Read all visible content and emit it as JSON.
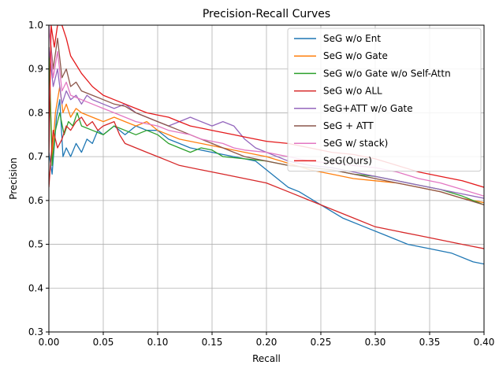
{
  "chart_data": {
    "type": "line",
    "title": "Precision-Recall Curves",
    "xlabel": "Recall",
    "ylabel": "Precision",
    "xlim": [
      0.0,
      0.4
    ],
    "ylim": [
      0.3,
      1.0
    ],
    "xticks": [
      0.0,
      0.05,
      0.1,
      0.15,
      0.2,
      0.25,
      0.3,
      0.35,
      0.4
    ],
    "xtick_labels": [
      "0.00",
      "0.05",
      "0.10",
      "0.15",
      "0.20",
      "0.25",
      "0.30",
      "0.35",
      "0.40"
    ],
    "yticks": [
      0.3,
      0.4,
      0.5,
      0.6,
      0.7,
      0.8,
      0.9,
      1.0
    ],
    "ytick_labels": [
      "0.3",
      "0.4",
      "0.5",
      "0.6",
      "0.7",
      "0.8",
      "0.9",
      "1.0"
    ],
    "grid": true,
    "legend_position": "top-right",
    "series": [
      {
        "name": "SeG w/o Ent",
        "color": "#1f77b4",
        "points": [
          [
            0.0,
            0.71
          ],
          [
            0.003,
            0.66
          ],
          [
            0.007,
            0.79
          ],
          [
            0.01,
            0.83
          ],
          [
            0.013,
            0.7
          ],
          [
            0.016,
            0.72
          ],
          [
            0.02,
            0.7
          ],
          [
            0.025,
            0.73
          ],
          [
            0.03,
            0.71
          ],
          [
            0.035,
            0.74
          ],
          [
            0.04,
            0.73
          ],
          [
            0.045,
            0.76
          ],
          [
            0.05,
            0.75
          ],
          [
            0.06,
            0.77
          ],
          [
            0.07,
            0.75
          ],
          [
            0.08,
            0.77
          ],
          [
            0.09,
            0.76
          ],
          [
            0.1,
            0.76
          ],
          [
            0.11,
            0.74
          ],
          [
            0.12,
            0.73
          ],
          [
            0.13,
            0.72
          ],
          [
            0.15,
            0.71
          ],
          [
            0.17,
            0.7
          ],
          [
            0.19,
            0.69
          ],
          [
            0.2,
            0.67
          ],
          [
            0.21,
            0.65
          ],
          [
            0.22,
            0.63
          ],
          [
            0.23,
            0.62
          ],
          [
            0.25,
            0.59
          ],
          [
            0.27,
            0.56
          ],
          [
            0.29,
            0.54
          ],
          [
            0.31,
            0.52
          ],
          [
            0.33,
            0.5
          ],
          [
            0.35,
            0.49
          ],
          [
            0.37,
            0.48
          ],
          [
            0.39,
            0.46
          ],
          [
            0.4,
            0.455
          ]
        ]
      },
      {
        "name": "SeG w/o Gate",
        "color": "#ff7f0e",
        "points": [
          [
            0.0,
            0.95
          ],
          [
            0.003,
            0.7
          ],
          [
            0.006,
            0.8
          ],
          [
            0.01,
            0.86
          ],
          [
            0.013,
            0.8
          ],
          [
            0.016,
            0.82
          ],
          [
            0.02,
            0.79
          ],
          [
            0.025,
            0.81
          ],
          [
            0.03,
            0.8
          ],
          [
            0.04,
            0.79
          ],
          [
            0.05,
            0.78
          ],
          [
            0.06,
            0.79
          ],
          [
            0.07,
            0.78
          ],
          [
            0.08,
            0.77
          ],
          [
            0.09,
            0.78
          ],
          [
            0.1,
            0.76
          ],
          [
            0.12,
            0.74
          ],
          [
            0.14,
            0.73
          ],
          [
            0.16,
            0.72
          ],
          [
            0.18,
            0.71
          ],
          [
            0.2,
            0.7
          ],
          [
            0.22,
            0.685
          ],
          [
            0.24,
            0.67
          ],
          [
            0.26,
            0.66
          ],
          [
            0.28,
            0.65
          ],
          [
            0.3,
            0.645
          ],
          [
            0.32,
            0.64
          ],
          [
            0.34,
            0.63
          ],
          [
            0.36,
            0.62
          ],
          [
            0.38,
            0.605
          ],
          [
            0.4,
            0.595
          ]
        ]
      },
      {
        "name": "SeG w/o Gate w/o Self-Attn",
        "color": "#2ca02c",
        "points": [
          [
            0.0,
            0.95
          ],
          [
            0.003,
            0.68
          ],
          [
            0.006,
            0.76
          ],
          [
            0.01,
            0.8
          ],
          [
            0.014,
            0.75
          ],
          [
            0.018,
            0.78
          ],
          [
            0.022,
            0.77
          ],
          [
            0.026,
            0.8
          ],
          [
            0.03,
            0.77
          ],
          [
            0.04,
            0.76
          ],
          [
            0.05,
            0.75
          ],
          [
            0.06,
            0.77
          ],
          [
            0.07,
            0.76
          ],
          [
            0.08,
            0.75
          ],
          [
            0.09,
            0.76
          ],
          [
            0.1,
            0.75
          ],
          [
            0.11,
            0.73
          ],
          [
            0.12,
            0.72
          ],
          [
            0.13,
            0.71
          ],
          [
            0.14,
            0.72
          ],
          [
            0.15,
            0.715
          ],
          [
            0.16,
            0.7
          ],
          [
            0.18,
            0.695
          ],
          [
            0.2,
            0.69
          ],
          [
            0.22,
            0.68
          ],
          [
            0.24,
            0.675
          ],
          [
            0.26,
            0.67
          ],
          [
            0.28,
            0.66
          ],
          [
            0.3,
            0.655
          ],
          [
            0.32,
            0.645
          ],
          [
            0.34,
            0.635
          ],
          [
            0.36,
            0.625
          ],
          [
            0.38,
            0.61
          ],
          [
            0.4,
            0.59
          ]
        ]
      },
      {
        "name": "SeG w/o ALL",
        "color": "#d62728",
        "points": [
          [
            0.0,
            0.63
          ],
          [
            0.002,
            0.7
          ],
          [
            0.004,
            0.76
          ],
          [
            0.008,
            0.72
          ],
          [
            0.012,
            0.74
          ],
          [
            0.016,
            0.77
          ],
          [
            0.02,
            0.76
          ],
          [
            0.025,
            0.78
          ],
          [
            0.03,
            0.79
          ],
          [
            0.035,
            0.77
          ],
          [
            0.04,
            0.78
          ],
          [
            0.045,
            0.76
          ],
          [
            0.05,
            0.77
          ],
          [
            0.06,
            0.78
          ],
          [
            0.065,
            0.75
          ],
          [
            0.07,
            0.73
          ],
          [
            0.08,
            0.72
          ],
          [
            0.09,
            0.71
          ],
          [
            0.1,
            0.7
          ],
          [
            0.11,
            0.69
          ],
          [
            0.12,
            0.68
          ],
          [
            0.14,
            0.67
          ],
          [
            0.16,
            0.66
          ],
          [
            0.18,
            0.65
          ],
          [
            0.2,
            0.64
          ],
          [
            0.22,
            0.62
          ],
          [
            0.24,
            0.6
          ],
          [
            0.26,
            0.58
          ],
          [
            0.28,
            0.56
          ],
          [
            0.3,
            0.54
          ],
          [
            0.32,
            0.53
          ],
          [
            0.34,
            0.52
          ],
          [
            0.36,
            0.51
          ],
          [
            0.38,
            0.5
          ],
          [
            0.4,
            0.49
          ]
        ]
      },
      {
        "name": "SeG+ATT w/o Gate",
        "color": "#9467bd",
        "points": [
          [
            0.0,
            0.95
          ],
          [
            0.004,
            0.86
          ],
          [
            0.008,
            0.9
          ],
          [
            0.012,
            0.82
          ],
          [
            0.016,
            0.85
          ],
          [
            0.02,
            0.83
          ],
          [
            0.025,
            0.84
          ],
          [
            0.03,
            0.82
          ],
          [
            0.035,
            0.84
          ],
          [
            0.04,
            0.83
          ],
          [
            0.05,
            0.82
          ],
          [
            0.06,
            0.81
          ],
          [
            0.07,
            0.82
          ],
          [
            0.08,
            0.8
          ],
          [
            0.09,
            0.79
          ],
          [
            0.1,
            0.78
          ],
          [
            0.11,
            0.77
          ],
          [
            0.12,
            0.78
          ],
          [
            0.13,
            0.79
          ],
          [
            0.14,
            0.78
          ],
          [
            0.15,
            0.77
          ],
          [
            0.16,
            0.78
          ],
          [
            0.17,
            0.77
          ],
          [
            0.18,
            0.74
          ],
          [
            0.19,
            0.72
          ],
          [
            0.2,
            0.71
          ],
          [
            0.22,
            0.69
          ],
          [
            0.24,
            0.68
          ],
          [
            0.26,
            0.675
          ],
          [
            0.28,
            0.665
          ],
          [
            0.3,
            0.655
          ],
          [
            0.32,
            0.645
          ],
          [
            0.34,
            0.635
          ],
          [
            0.36,
            0.625
          ],
          [
            0.38,
            0.615
          ],
          [
            0.4,
            0.605
          ]
        ]
      },
      {
        "name": "SeG + ATT",
        "color": "#8c564b",
        "points": [
          [
            0.0,
            1.0
          ],
          [
            0.004,
            0.9
          ],
          [
            0.008,
            0.97
          ],
          [
            0.012,
            0.88
          ],
          [
            0.016,
            0.9
          ],
          [
            0.02,
            0.86
          ],
          [
            0.025,
            0.87
          ],
          [
            0.03,
            0.85
          ],
          [
            0.04,
            0.84
          ],
          [
            0.05,
            0.83
          ],
          [
            0.06,
            0.82
          ],
          [
            0.07,
            0.815
          ],
          [
            0.08,
            0.8
          ],
          [
            0.09,
            0.79
          ],
          [
            0.1,
            0.78
          ],
          [
            0.11,
            0.77
          ],
          [
            0.12,
            0.76
          ],
          [
            0.13,
            0.75
          ],
          [
            0.14,
            0.74
          ],
          [
            0.15,
            0.73
          ],
          [
            0.16,
            0.72
          ],
          [
            0.17,
            0.71
          ],
          [
            0.18,
            0.7
          ],
          [
            0.2,
            0.69
          ],
          [
            0.22,
            0.68
          ],
          [
            0.24,
            0.675
          ],
          [
            0.26,
            0.67
          ],
          [
            0.28,
            0.66
          ],
          [
            0.3,
            0.65
          ],
          [
            0.32,
            0.64
          ],
          [
            0.34,
            0.63
          ],
          [
            0.36,
            0.62
          ],
          [
            0.38,
            0.605
          ],
          [
            0.4,
            0.59
          ]
        ]
      },
      {
        "name": "SeG w/ stack)",
        "color": "#e377c2",
        "points": [
          [
            0.0,
            1.0
          ],
          [
            0.004,
            0.88
          ],
          [
            0.008,
            0.94
          ],
          [
            0.012,
            0.85
          ],
          [
            0.016,
            0.87
          ],
          [
            0.02,
            0.84
          ],
          [
            0.03,
            0.83
          ],
          [
            0.04,
            0.82
          ],
          [
            0.05,
            0.81
          ],
          [
            0.06,
            0.8
          ],
          [
            0.07,
            0.79
          ],
          [
            0.08,
            0.78
          ],
          [
            0.09,
            0.775
          ],
          [
            0.1,
            0.77
          ],
          [
            0.11,
            0.76
          ],
          [
            0.12,
            0.755
          ],
          [
            0.13,
            0.75
          ],
          [
            0.14,
            0.74
          ],
          [
            0.15,
            0.735
          ],
          [
            0.16,
            0.73
          ],
          [
            0.17,
            0.72
          ],
          [
            0.18,
            0.715
          ],
          [
            0.2,
            0.71
          ],
          [
            0.22,
            0.7
          ],
          [
            0.24,
            0.69
          ],
          [
            0.26,
            0.685
          ],
          [
            0.28,
            0.68
          ],
          [
            0.3,
            0.675
          ],
          [
            0.32,
            0.665
          ],
          [
            0.34,
            0.65
          ],
          [
            0.36,
            0.64
          ],
          [
            0.38,
            0.625
          ],
          [
            0.4,
            0.61
          ]
        ]
      },
      {
        "name": "SeG(Ours)",
        "color": "#e41a1c",
        "points": [
          [
            0.0,
            0.7
          ],
          [
            0.002,
            1.0
          ],
          [
            0.005,
            0.95
          ],
          [
            0.008,
            1.0
          ],
          [
            0.012,
            1.0
          ],
          [
            0.016,
            0.97
          ],
          [
            0.02,
            0.93
          ],
          [
            0.025,
            0.91
          ],
          [
            0.03,
            0.89
          ],
          [
            0.04,
            0.86
          ],
          [
            0.05,
            0.84
          ],
          [
            0.06,
            0.83
          ],
          [
            0.07,
            0.82
          ],
          [
            0.08,
            0.81
          ],
          [
            0.09,
            0.8
          ],
          [
            0.1,
            0.795
          ],
          [
            0.11,
            0.79
          ],
          [
            0.12,
            0.78
          ],
          [
            0.13,
            0.77
          ],
          [
            0.14,
            0.765
          ],
          [
            0.15,
            0.76
          ],
          [
            0.16,
            0.755
          ],
          [
            0.17,
            0.75
          ],
          [
            0.18,
            0.745
          ],
          [
            0.19,
            0.74
          ],
          [
            0.2,
            0.735
          ],
          [
            0.22,
            0.73
          ],
          [
            0.24,
            0.72
          ],
          [
            0.26,
            0.71
          ],
          [
            0.28,
            0.705
          ],
          [
            0.3,
            0.695
          ],
          [
            0.32,
            0.68
          ],
          [
            0.34,
            0.665
          ],
          [
            0.36,
            0.655
          ],
          [
            0.38,
            0.645
          ],
          [
            0.4,
            0.63
          ]
        ]
      }
    ]
  }
}
